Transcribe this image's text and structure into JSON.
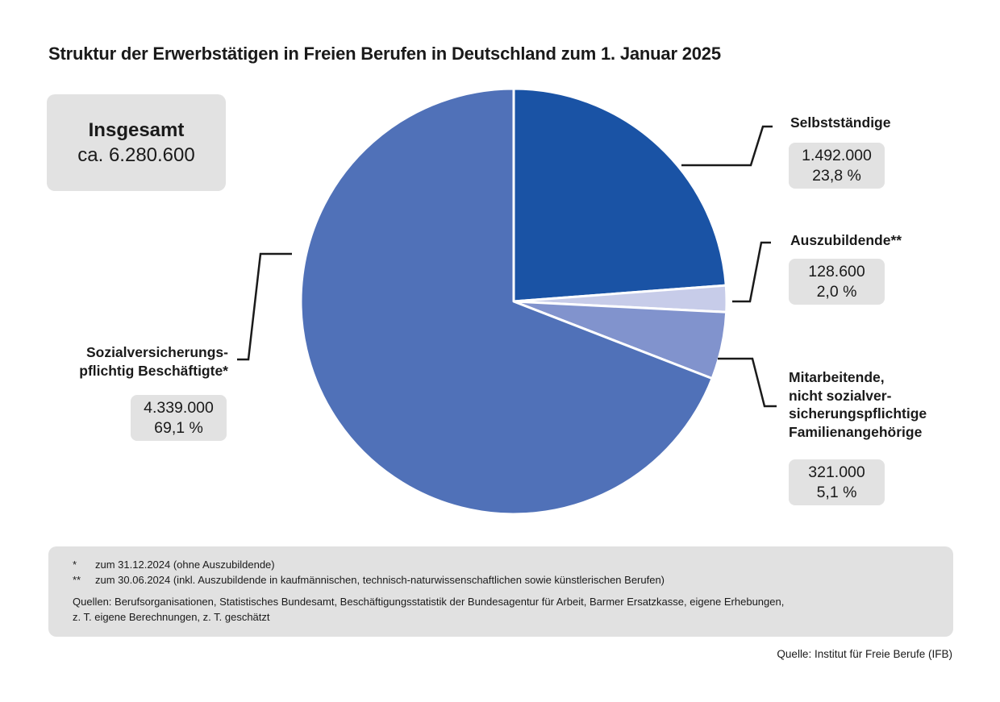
{
  "title": "Struktur der Erwerbstätigen in Freien Berufen in Deutschland zum 1. Januar 2025",
  "total_box": {
    "label": "Insgesamt",
    "value": "ca. 6.280.600"
  },
  "chart_data": {
    "type": "pie",
    "title": "Struktur der Erwerbstätigen in Freien Berufen in Deutschland zum 1. Januar 2025",
    "total": 6280600,
    "total_label": "Insgesamt ca. 6.280.600",
    "start_angle_deg": -90,
    "direction": "clockwise",
    "slice_border_color": "#ffffff",
    "slices": [
      {
        "label": "Selbstständige",
        "value": 1492000,
        "value_label": "1.492.000",
        "pct": 23.8,
        "pct_label": "23,8 %",
        "color": "#1a53a5"
      },
      {
        "label": "Auszubildende**",
        "value": 128600,
        "value_label": "128.600",
        "pct": 2.0,
        "pct_label": "2,0 %",
        "color": "#c7cce9"
      },
      {
        "label": "Mitarbeitende, nicht sozialversicherungspflichtige Familienangehörige",
        "value": 321000,
        "value_label": "321.000",
        "pct": 5.1,
        "pct_label": "5,1 %",
        "color": "#8193cd"
      },
      {
        "label": "Sozialversicherungspflichtig Beschäftigte*",
        "value": 4339000,
        "value_label": "4.339.000",
        "pct": 69.1,
        "pct_label": "69,1 %",
        "color": "#5071b8"
      }
    ]
  },
  "callouts": {
    "selbststaendige": {
      "label": "Selbstständige",
      "value": "1.492.000",
      "pct": "23,8 %"
    },
    "auszubildende": {
      "label": "Auszubildende**",
      "value": "128.600",
      "pct": "2,0 %"
    },
    "mitarbeitende": {
      "label_lines": [
        "Mitarbeitende,",
        "nicht sozialver-",
        "sicherungspflichtige",
        "Familienangehörige"
      ],
      "value": "321.000",
      "pct": "5,1 %"
    },
    "beschaeftigte": {
      "label_lines": [
        "Sozialversicherungs-",
        "pflichtig Beschäftigte*"
      ],
      "value": "4.339.000",
      "pct": "69,1 %"
    }
  },
  "footnotes": {
    "items": [
      {
        "marker": "*",
        "text": "zum 31.12.2024 (ohne Auszubildende)"
      },
      {
        "marker": "**",
        "text": "zum 30.06.2024 (inkl. Auszubildende in kaufmännischen, technisch-naturwissenschaftlichen sowie künstlerischen Berufen)"
      }
    ],
    "sources_lines": [
      "Quellen: Berufsorganisationen, Statistisches Bundesamt, Beschäftigungsstatistik der Bundesagentur für Arbeit, Barmer Ersatzkasse, eigene Erhebungen,",
      "z. T. eigene Berechnungen, z. T. geschätzt"
    ]
  },
  "source": "Quelle: Institut für Freie Berufe (IFB)",
  "colors": {
    "slice_dark_blue": "#1a53a5",
    "slice_lavender": "#c7cce9",
    "slice_mid_blue": "#8193cd",
    "slice_main_blue": "#5071b8",
    "box_gray": "#e2e2e2",
    "leader_line": "#1a1a1a"
  }
}
